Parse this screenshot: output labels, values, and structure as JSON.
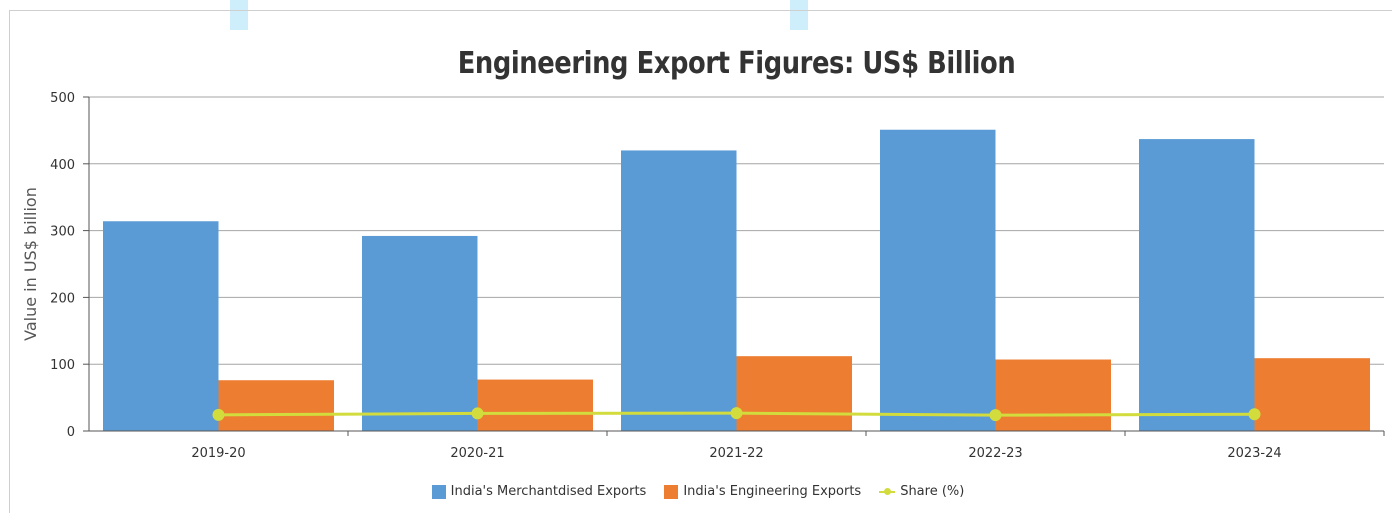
{
  "chart_data": {
    "type": "bar",
    "title": "Engineering Export Figures: US$ Billion",
    "ylabel": "Value in US$ billion",
    "xlabel": "",
    "ylim": [
      0,
      500
    ],
    "yticks": [
      0,
      100,
      200,
      300,
      400,
      500
    ],
    "grid": true,
    "legend_position": "bottom-center",
    "categories": [
      "2019-20",
      "2020-21",
      "2021-22",
      "2022-23",
      "2023-24"
    ],
    "series": [
      {
        "name": "India's Merchantdised Exports",
        "kind": "bar",
        "color": "#5b9bd5",
        "values": [
          314,
          292,
          420,
          451,
          437
        ]
      },
      {
        "name": "India's Engineering Exports",
        "kind": "bar",
        "color": "#ed7d31",
        "values": [
          76,
          77,
          112,
          107,
          109
        ]
      },
      {
        "name": "Share (%)",
        "kind": "line",
        "color": "#d2dc3c",
        "values": [
          24.2,
          26.3,
          26.7,
          23.7,
          25
        ]
      }
    ]
  }
}
